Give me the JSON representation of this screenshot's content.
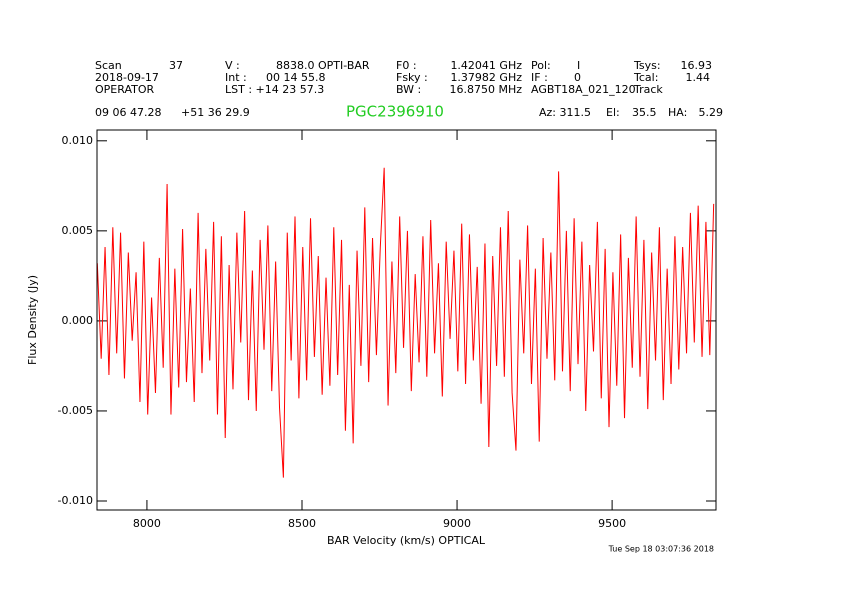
{
  "chart_data": {
    "type": "line",
    "title": "PGC2396910",
    "header": [
      [
        "Scan",
        "37",
        "V    :",
        "8838.0 OPTI-BAR",
        "F0    :",
        "1.42041 GHz",
        "Pol:",
        "I",
        "Tsys:",
        "16.93"
      ],
      [
        "2018-09-17",
        "Int  :",
        "00 14 55.8",
        "Fsky :",
        "1.37982 GHz",
        "IF :",
        "0",
        "Tcal:",
        "1.44"
      ],
      [
        "OPERATOR",
        "LST : +14 23 57.3",
        "BW    :",
        "16.8750 MHz",
        "AGBT18A_021_120",
        "Track"
      ],
      [
        "09 06 47.28",
        "+51 36 29.9",
        "Az: 311.5",
        "El:",
        "35.5",
        "HA:",
        "5.29"
      ]
    ],
    "timestamp": "Tue Sep 18 03:07:36 2018",
    "xlabel": "BAR Velocity (km/s) OPTICAL",
    "ylabel": "Flux Density (Jy)",
    "xlim": [
      7839,
      9835
    ],
    "ylim": [
      -0.0105,
      0.0106
    ],
    "xticks": [
      8000,
      8500,
      9000,
      9500
    ],
    "yticks": [
      {
        "value": -0.01,
        "label": "-0.010"
      },
      -0.005,
      {
        "value": 0,
        "label": "0.000"
      },
      0.005,
      {
        "value": 0.01,
        "label": "0.010"
      }
    ],
    "x": [
      7840,
      7852.5,
      7865,
      7877.5,
      7890,
      7902.5,
      7915,
      7927.5,
      7940,
      7952.5,
      7965,
      7977.5,
      7990,
      8002.5,
      8015,
      8027.5,
      8040,
      8052.5,
      8065,
      8077.5,
      8090,
      8102.5,
      8115,
      8127.5,
      8140,
      8152.5,
      8165,
      8177.5,
      8190,
      8202.5,
      8215,
      8227.5,
      8240,
      8252.5,
      8265,
      8277.5,
      8290,
      8302.5,
      8315,
      8327.5,
      8340,
      8352.5,
      8365,
      8377.5,
      8390,
      8402.5,
      8415,
      8427.5,
      8440,
      8452.5,
      8465,
      8477.5,
      8490,
      8502.5,
      8515,
      8527.5,
      8540,
      8552.5,
      8565,
      8577.5,
      8590,
      8602.5,
      8615,
      8627.5,
      8640,
      8652.5,
      8665,
      8677.5,
      8690,
      8702.5,
      8715,
      8727.5,
      8740,
      8752.5,
      8765,
      8777.5,
      8790,
      8802.5,
      8815,
      8827.5,
      8840,
      8852.5,
      8865,
      8877.5,
      8890,
      8902.5,
      8915,
      8927.5,
      8940,
      8952.5,
      8965,
      8977.5,
      8990,
      9002.5,
      9015,
      9027.5,
      9040,
      9052.5,
      9065,
      9077.5,
      9090,
      9102.5,
      9115,
      9127.5,
      9140,
      9152.5,
      9165,
      9177.5,
      9190,
      9202.5,
      9215,
      9227.5,
      9240,
      9252.5,
      9265,
      9277.5,
      9290,
      9302.5,
      9315,
      9327.5,
      9340,
      9352.5,
      9365,
      9377.5,
      9390,
      9402.5,
      9415,
      9427.5,
      9440,
      9452.5,
      9465,
      9477.5,
      9490,
      9502.5,
      9515,
      9527.5,
      9540,
      9552.5,
      9565,
      9577.5,
      9590,
      9602.5,
      9615,
      9627.5,
      9640,
      9652.5,
      9665,
      9677.5,
      9690,
      9702.5,
      9715,
      9727.5,
      9740,
      9752.5,
      9765,
      9777.5,
      9790,
      9802.5,
      9815,
      9827.5
    ],
    "series": [
      {
        "color": "#ff0000",
        "values": [
          0.0032,
          -0.0021,
          0.0041,
          -0.003,
          0.0052,
          -0.0018,
          0.0049,
          -0.0032,
          0.0038,
          -0.0011,
          0.0027,
          -0.0045,
          0.0044,
          -0.0052,
          0.0013,
          -0.004,
          0.0035,
          -0.0026,
          0.0076,
          -0.0052,
          0.0029,
          -0.0037,
          0.0051,
          -0.0034,
          0.0018,
          -0.0045,
          0.006,
          -0.0029,
          0.004,
          -0.0022,
          0.0055,
          -0.0052,
          0.0047,
          -0.0065,
          0.0031,
          -0.0038,
          0.0049,
          -0.0012,
          0.0061,
          -0.0044,
          0.0028,
          -0.005,
          0.0045,
          -0.0016,
          0.0053,
          -0.0039,
          0.0033,
          -0.0048,
          -0.0087,
          0.0049,
          -0.0022,
          0.0058,
          -0.0043,
          0.0041,
          -0.0033,
          0.0057,
          -0.002,
          0.0036,
          -0.0041,
          0.0024,
          -0.0036,
          0.0052,
          -0.003,
          0.0045,
          -0.0061,
          0.002,
          -0.0068,
          0.0039,
          -0.0025,
          0.0063,
          -0.0034,
          0.0046,
          -0.0019,
          0.0041,
          0.0085,
          -0.0047,
          0.0033,
          -0.0029,
          0.0058,
          -0.0015,
          0.005,
          -0.0039,
          0.0026,
          -0.0023,
          0.0047,
          -0.0031,
          0.0056,
          -0.0018,
          0.0032,
          -0.0042,
          0.0044,
          -0.001,
          0.0039,
          -0.0028,
          0.0054,
          -0.0035,
          0.0048,
          -0.0022,
          0.003,
          -0.0046,
          0.0043,
          -0.007,
          0.0036,
          -0.0025,
          0.0052,
          -0.0031,
          0.0061,
          -0.004,
          -0.0072,
          0.0034,
          -0.0018,
          0.0053,
          -0.0035,
          0.0029,
          -0.0067,
          0.0046,
          -0.0021,
          0.0038,
          -0.0033,
          0.0083,
          -0.0028,
          0.005,
          -0.0039,
          0.0057,
          -0.0024,
          0.0044,
          -0.005,
          0.0031,
          -0.0017,
          0.0055,
          -0.0043,
          0.004,
          -0.0059,
          0.0027,
          -0.0036,
          0.0048,
          -0.0054,
          0.0035,
          -0.0026,
          0.0058,
          -0.0031,
          0.0045,
          -0.0049,
          0.0038,
          -0.0022,
          0.0052,
          -0.0044,
          0.0029,
          -0.0035,
          0.0047,
          -0.0027,
          0.0041,
          -0.0018,
          0.006,
          -0.0012,
          0.0064,
          -0.002,
          0.0055,
          -0.0019,
          0.0065
        ]
      }
    ]
  }
}
